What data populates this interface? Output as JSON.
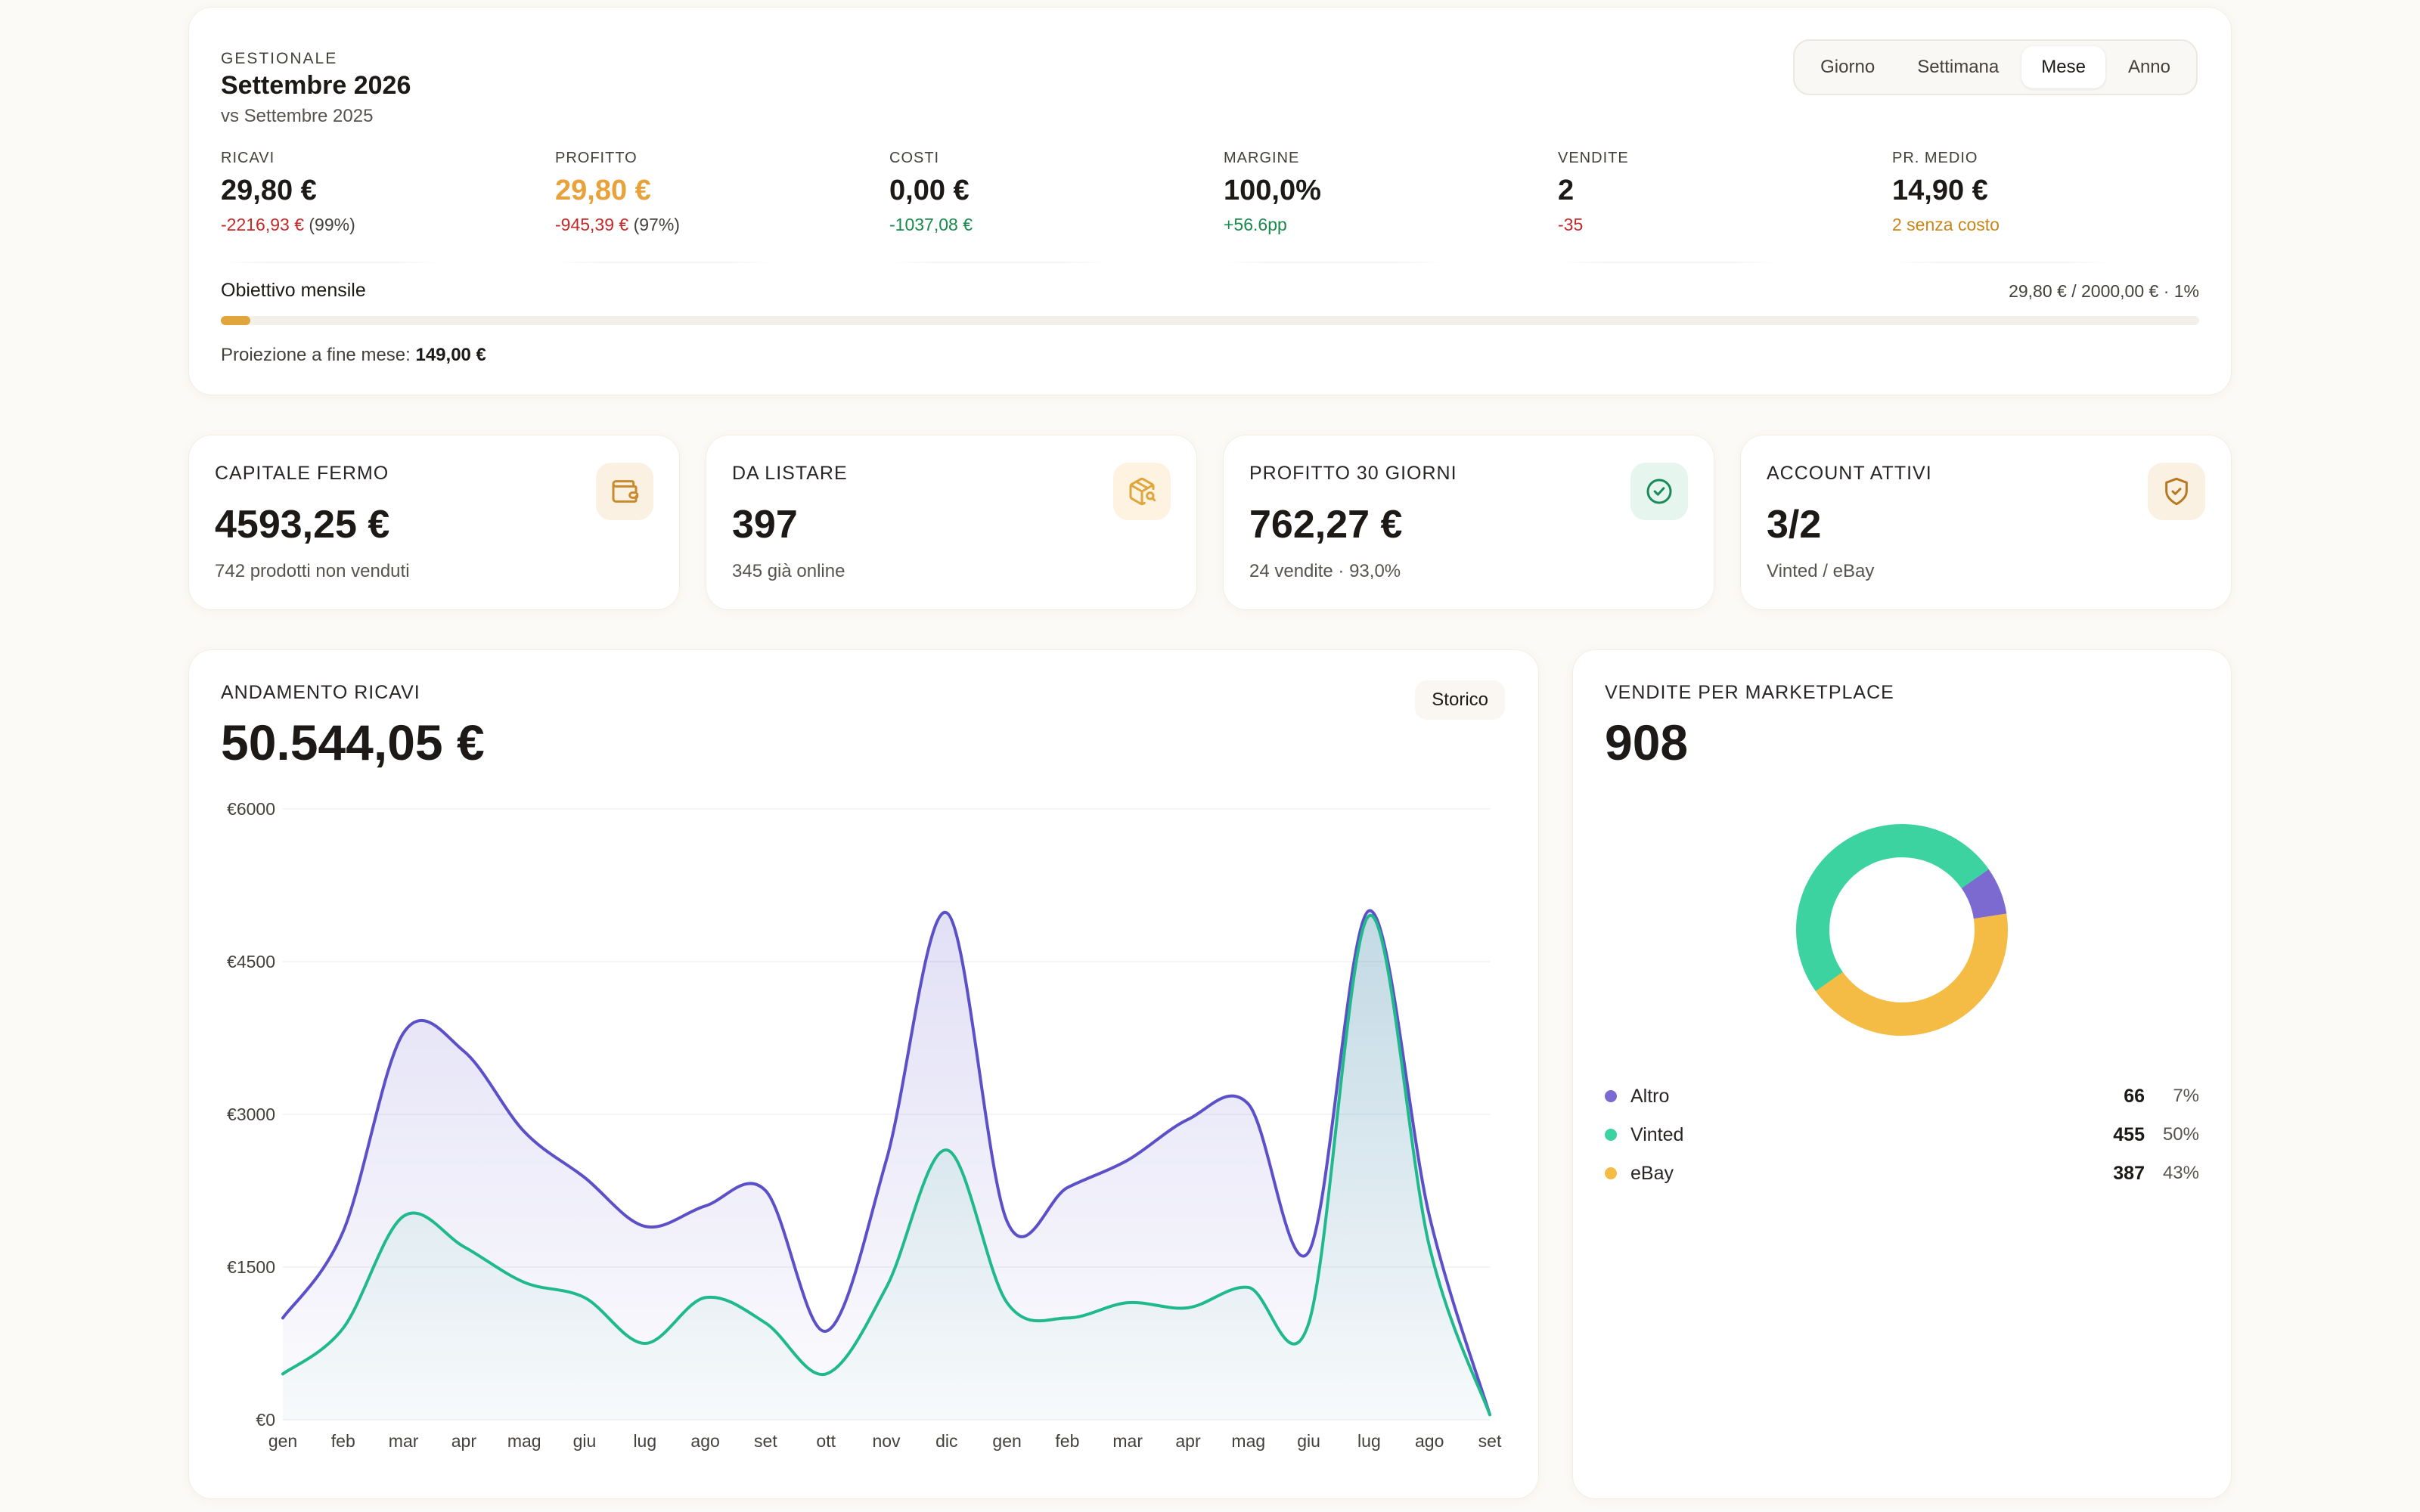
{
  "header": {
    "eyebrow": "GESTIONALE",
    "title": "Settembre 2026",
    "subtitle": "vs Settembre 2025",
    "periods": [
      "Giorno",
      "Settimana",
      "Mese",
      "Anno"
    ],
    "active_period": "Mese"
  },
  "metrics": [
    {
      "label": "RICAVI",
      "value": "29,80 €",
      "delta": "-2216,93 €",
      "delta_rel": "(99%)",
      "tone": "neg"
    },
    {
      "label": "PROFITTO",
      "value": "29,80 €",
      "delta": "-945,39 €",
      "delta_rel": "(97%)",
      "tone": "neg"
    },
    {
      "label": "COSTI",
      "value": "0,00 €",
      "delta": "-1037,08 €",
      "delta_rel": "",
      "tone": "pos"
    },
    {
      "label": "MARGINE",
      "value": "100,0%",
      "delta": "+56.6pp",
      "delta_rel": "",
      "tone": "pos"
    },
    {
      "label": "VENDITE",
      "value": "2",
      "delta": "-35",
      "delta_rel": "",
      "tone": "neg"
    },
    {
      "label": "PR. MEDIO",
      "value": "14,90 €",
      "delta": "2 senza costo",
      "delta_rel": "",
      "tone": "warn"
    }
  ],
  "goal": {
    "label": "Obiettivo mensile",
    "summary": "29,80 € / 2000,00 € · 1%",
    "progress_fraction": 0.0149,
    "projection_label": "Proiezione a fine mese:",
    "projection_value": "149,00 €"
  },
  "stats": [
    {
      "label": "CAPITALE FERMO",
      "value": "4593,25 €",
      "sub": "742 prodotti non venduti",
      "icon": "wallet-icon",
      "icon_color": "#c98a2b",
      "icon_bg": "#fbf1e3"
    },
    {
      "label": "DA LISTARE",
      "value": "397",
      "sub": "345 già online",
      "icon": "package-search-icon",
      "icon_color": "#e0a63c",
      "icon_bg": "#fdf3e0"
    },
    {
      "label": "PROFITTO 30 GIORNI",
      "value": "762,27 €",
      "sub": "24 vendite · 93,0%",
      "icon": "check-circle-icon",
      "icon_color": "#1b8a5a",
      "icon_bg": "#e6f5ee"
    },
    {
      "label": "ACCOUNT ATTIVI",
      "value": "3/2",
      "sub": "Vinted / eBay",
      "icon": "shield-check-icon",
      "icon_color": "#b7791f",
      "icon_bg": "#fbf1e3"
    }
  ],
  "revenue": {
    "label": "ANDAMENTO RICAVI",
    "total": "50.544,05 €",
    "range_pill": "Storico"
  },
  "chart_data": {
    "type": "area",
    "title": "ANDAMENTO RICAVI",
    "categories": [
      "gen",
      "feb",
      "mar",
      "apr",
      "mag",
      "giu",
      "lug",
      "ago",
      "set",
      "ott",
      "nov",
      "dic",
      "gen",
      "feb",
      "mar",
      "apr",
      "mag",
      "giu",
      "lug",
      "ago",
      "set"
    ],
    "y_tick_labels": [
      "€0",
      "€1500",
      "€3000",
      "€4500",
      "€6000"
    ],
    "ylim": [
      0,
      6000
    ],
    "series": [
      {
        "color": "#5b50c8",
        "values": [
          1000,
          1850,
          3800,
          3620,
          2830,
          2380,
          1900,
          2100,
          2250,
          870,
          2550,
          4980,
          1950,
          2280,
          2550,
          2950,
          3100,
          1650,
          5000,
          2000,
          50
        ]
      },
      {
        "color": "#1fb98c",
        "values": [
          450,
          900,
          2000,
          1700,
          1350,
          1200,
          750,
          1200,
          950,
          450,
          1300,
          2650,
          1150,
          1000,
          1150,
          1100,
          1300,
          950,
          4950,
          1700,
          50
        ]
      }
    ]
  },
  "marketplace": {
    "label": "VENDITE PER MARKETPLACE",
    "total": "908",
    "items": [
      {
        "name": "Altro",
        "count": "66",
        "pct": "7%",
        "share": 66,
        "color": "#7c6ad1"
      },
      {
        "name": "Vinted",
        "count": "455",
        "pct": "50%",
        "share": 455,
        "color": "#3dd3a1"
      },
      {
        "name": "eBay",
        "count": "387",
        "pct": "43%",
        "share": 387,
        "color": "#f4bc45"
      }
    ]
  }
}
